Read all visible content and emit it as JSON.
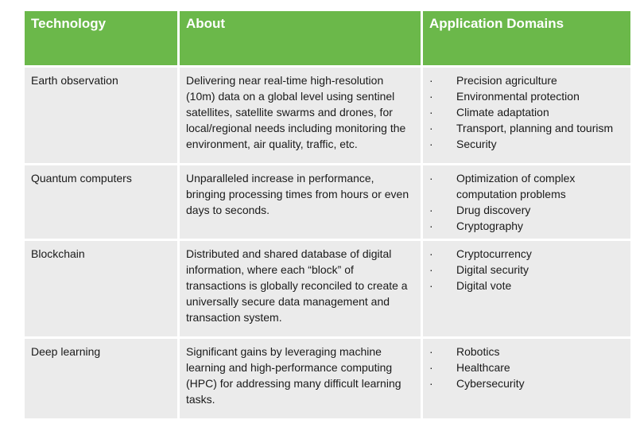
{
  "headers": [
    "Technology",
    "About",
    "Application Domains"
  ],
  "rows": [
    {
      "technology": "Earth observation",
      "about": "Delivering near real-time high-resolution (10m) data on a global level using sentinel satellites, satellite swarms and drones, for local/regional needs including monitoring the environment, air quality, traffic, etc.",
      "domains": [
        "Precision agriculture",
        "Environmental protection",
        "Climate adaptation",
        "Transport, planning and tourism",
        "Security"
      ]
    },
    {
      "technology": "Quantum computers",
      "about": "Unparalleled increase in performance, bringing processing times from hours or even days to seconds.",
      "domains": [
        "Optimization of complex computation problems",
        "Drug discovery",
        "Cryptography"
      ]
    },
    {
      "technology": "Blockchain",
      "about": "Distributed and shared database of digital information, where each “block” of transactions is globally reconciled to create a universally secure data management and transaction system.",
      "domains": [
        "Cryptocurrency",
        "Digital security",
        "Digital vote"
      ]
    },
    {
      "technology": "Deep learning",
      "about": "Significant gains by leveraging machine learning and high-performance computing (HPC) for addressing many difficult learning tasks.",
      "domains": [
        "Robotics",
        "Healthcare",
        "Cybersecurity"
      ]
    }
  ]
}
